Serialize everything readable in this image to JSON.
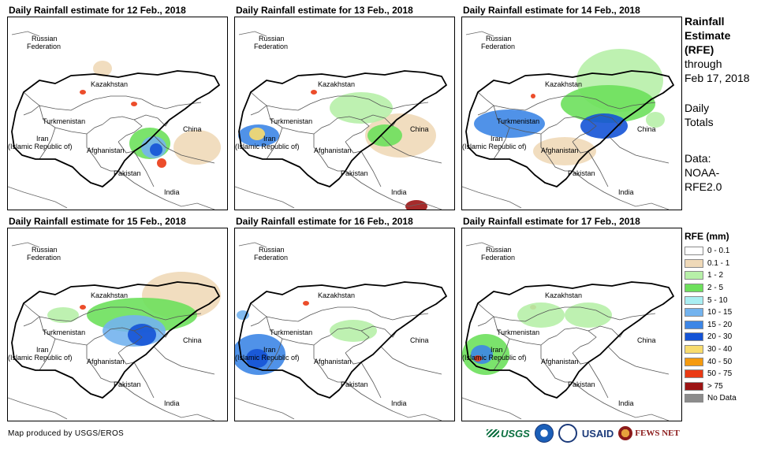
{
  "panels": [
    {
      "title": "Daily Rainfall estimate for 12 Feb., 2018"
    },
    {
      "title": "Daily Rainfall estimate for 13 Feb., 2018"
    },
    {
      "title": "Daily Rainfall estimate for 14 Feb., 2018"
    },
    {
      "title": "Daily Rainfall estimate for 15 Feb., 2018"
    },
    {
      "title": "Daily Rainfall estimate for 16 Feb., 2018"
    },
    {
      "title": "Daily Rainfall estimate for 17 Feb., 2018"
    }
  ],
  "map_labels": {
    "russia_1": "Russian",
    "russia_2": "Federation",
    "kazakhstan": "Kazakhstan",
    "turkmenistan": "Turkmenistan",
    "iran_1": "Iran",
    "iran_2": "(Islamic Republic of)",
    "afghanistan": "Afghanistan",
    "pakistan": "Pakistan",
    "china": "China",
    "india": "India"
  },
  "side_info": {
    "title_1": "Rainfall",
    "title_2": "Estimate",
    "title_3": "(RFE)",
    "line_1": "through",
    "line_2": "Feb 17, 2018",
    "line_3": "Daily",
    "line_4": "Totals",
    "data_1": "Data:",
    "data_2": "NOAA-",
    "data_3": "RFE2.0"
  },
  "legend": {
    "title": "RFE (mm)",
    "items": [
      {
        "label": "0 - 0.1",
        "color": "#ffffff"
      },
      {
        "label": "0.1 - 1",
        "color": "#efd9b8"
      },
      {
        "label": "1 - 2",
        "color": "#b7f0a8"
      },
      {
        "label": "2 - 5",
        "color": "#6de05c"
      },
      {
        "label": "5 - 10",
        "color": "#a9eef2"
      },
      {
        "label": "10 - 15",
        "color": "#73b3ee"
      },
      {
        "label": "15 - 20",
        "color": "#3d86e6"
      },
      {
        "label": "20 - 30",
        "color": "#1453d6"
      },
      {
        "label": "30 - 40",
        "color": "#f8dc6e"
      },
      {
        "label": "40 - 50",
        "color": "#f59a0f"
      },
      {
        "label": "50 - 75",
        "color": "#ea3a14"
      },
      {
        "label": "> 75",
        "color": "#9c1414"
      },
      {
        "label": "No Data",
        "color": "#8c8c8c"
      }
    ]
  },
  "footer": {
    "credit": "Map produced by USGS/EROS"
  },
  "logos": {
    "usgs": "USGS",
    "usaid": "USAID",
    "fews": "FEWS NET"
  }
}
